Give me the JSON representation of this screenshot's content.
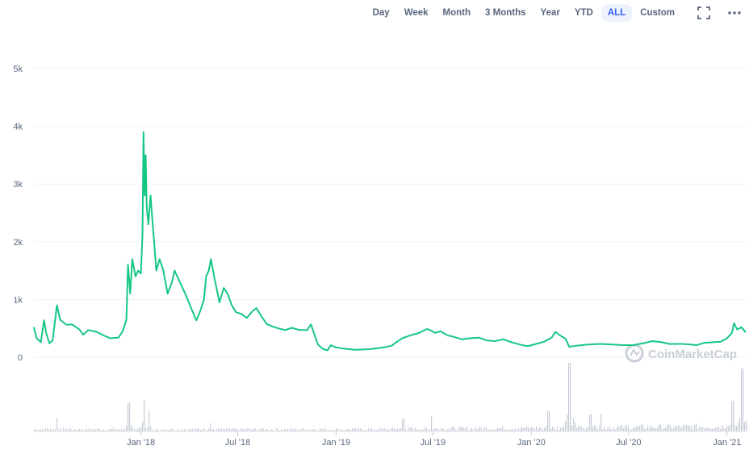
{
  "toolbar": {
    "ranges": [
      "Day",
      "Week",
      "Month",
      "3 Months",
      "Year",
      "YTD",
      "ALL",
      "Custom"
    ],
    "active_index": 6,
    "fullscreen_icon": "fullscreen-icon",
    "more_icon": "more-icon"
  },
  "watermark": {
    "text": "CoinMarketCap",
    "icon": "coinmarketcap-logo-icon"
  },
  "colors": {
    "price_line": "#16c784",
    "volume": "#c7ccd6",
    "grid": "#eff2f5",
    "accent": "#3861fb"
  },
  "chart_data": {
    "type": "line",
    "title": "",
    "xlabel": "",
    "ylabel": "",
    "ylim": [
      0,
      5000
    ],
    "y_ticks": [
      0,
      1000,
      2000,
      3000,
      4000,
      5000
    ],
    "y_tick_labels": [
      "0",
      "1k",
      "2k",
      "3k",
      "4k",
      "5k"
    ],
    "xlim": [
      "2017-06-15",
      "2021-02-05"
    ],
    "x_ticks": [
      "2018-01-01",
      "2018-07-01",
      "2019-01-01",
      "2019-07-01",
      "2020-01-01",
      "2020-07-01",
      "2021-01-01"
    ],
    "x_tick_labels": [
      "Jan '18",
      "Jul '18",
      "Jan '19",
      "Jul '19",
      "Jan '20",
      "Jul '20",
      "Jan '21"
    ],
    "grid": true,
    "series": [
      {
        "kind": "price",
        "points": [
          [
            "2017-06-15",
            520
          ],
          [
            "2017-06-20",
            330
          ],
          [
            "2017-06-28",
            260
          ],
          [
            "2017-07-04",
            640
          ],
          [
            "2017-07-08",
            420
          ],
          [
            "2017-07-14",
            240
          ],
          [
            "2017-07-20",
            290
          ],
          [
            "2017-07-28",
            900
          ],
          [
            "2017-08-03",
            650
          ],
          [
            "2017-08-15",
            560
          ],
          [
            "2017-08-25",
            570
          ],
          [
            "2017-09-08",
            480
          ],
          [
            "2017-09-15",
            390
          ],
          [
            "2017-09-25",
            470
          ],
          [
            "2017-10-10",
            440
          ],
          [
            "2017-10-25",
            370
          ],
          [
            "2017-11-05",
            330
          ],
          [
            "2017-11-20",
            340
          ],
          [
            "2017-11-28",
            450
          ],
          [
            "2017-12-05",
            650
          ],
          [
            "2017-12-08",
            1600
          ],
          [
            "2017-12-12",
            1100
          ],
          [
            "2017-12-16",
            1700
          ],
          [
            "2017-12-22",
            1400
          ],
          [
            "2017-12-27",
            1500
          ],
          [
            "2018-01-01",
            1450
          ],
          [
            "2018-01-04",
            2100
          ],
          [
            "2018-01-06",
            3900
          ],
          [
            "2018-01-08",
            2800
          ],
          [
            "2018-01-10",
            3500
          ],
          [
            "2018-01-12",
            2600
          ],
          [
            "2018-01-15",
            2300
          ],
          [
            "2018-01-19",
            2800
          ],
          [
            "2018-01-24",
            2200
          ],
          [
            "2018-01-30",
            1500
          ],
          [
            "2018-02-05",
            1700
          ],
          [
            "2018-02-12",
            1500
          ],
          [
            "2018-02-20",
            1100
          ],
          [
            "2018-02-28",
            1300
          ],
          [
            "2018-03-05",
            1500
          ],
          [
            "2018-03-15",
            1300
          ],
          [
            "2018-03-25",
            1100
          ],
          [
            "2018-04-05",
            850
          ],
          [
            "2018-04-15",
            640
          ],
          [
            "2018-04-22",
            800
          ],
          [
            "2018-04-29",
            1000
          ],
          [
            "2018-05-03",
            1400
          ],
          [
            "2018-05-08",
            1500
          ],
          [
            "2018-05-12",
            1700
          ],
          [
            "2018-05-18",
            1400
          ],
          [
            "2018-05-28",
            950
          ],
          [
            "2018-06-05",
            1200
          ],
          [
            "2018-06-12",
            1100
          ],
          [
            "2018-06-20",
            900
          ],
          [
            "2018-06-28",
            780
          ],
          [
            "2018-07-08",
            750
          ],
          [
            "2018-07-18",
            680
          ],
          [
            "2018-07-28",
            790
          ],
          [
            "2018-08-05",
            850
          ],
          [
            "2018-08-15",
            700
          ],
          [
            "2018-08-25",
            570
          ],
          [
            "2018-09-05",
            530
          ],
          [
            "2018-09-15",
            500
          ],
          [
            "2018-09-28",
            470
          ],
          [
            "2018-10-10",
            510
          ],
          [
            "2018-10-25",
            470
          ],
          [
            "2018-11-08",
            470
          ],
          [
            "2018-11-15",
            570
          ],
          [
            "2018-11-20",
            430
          ],
          [
            "2018-11-28",
            220
          ],
          [
            "2018-12-08",
            140
          ],
          [
            "2018-12-16",
            120
          ],
          [
            "2018-12-22",
            210
          ],
          [
            "2019-01-01",
            170
          ],
          [
            "2019-01-15",
            150
          ],
          [
            "2019-02-05",
            130
          ],
          [
            "2019-03-05",
            140
          ],
          [
            "2019-04-01",
            170
          ],
          [
            "2019-04-15",
            200
          ],
          [
            "2019-04-25",
            270
          ],
          [
            "2019-05-05",
            330
          ],
          [
            "2019-05-20",
            380
          ],
          [
            "2019-06-05",
            420
          ],
          [
            "2019-06-20",
            490
          ],
          [
            "2019-06-28",
            460
          ],
          [
            "2019-07-05",
            420
          ],
          [
            "2019-07-15",
            450
          ],
          [
            "2019-07-28",
            380
          ],
          [
            "2019-08-10",
            350
          ],
          [
            "2019-08-25",
            310
          ],
          [
            "2019-09-10",
            330
          ],
          [
            "2019-09-25",
            340
          ],
          [
            "2019-10-10",
            290
          ],
          [
            "2019-10-25",
            280
          ],
          [
            "2019-11-10",
            310
          ],
          [
            "2019-11-25",
            260
          ],
          [
            "2019-12-10",
            220
          ],
          [
            "2019-12-25",
            190
          ],
          [
            "2020-01-10",
            230
          ],
          [
            "2020-01-25",
            270
          ],
          [
            "2020-02-08",
            340
          ],
          [
            "2020-02-15",
            440
          ],
          [
            "2020-02-22",
            390
          ],
          [
            "2020-03-05",
            320
          ],
          [
            "2020-03-12",
            180
          ],
          [
            "2020-03-25",
            200
          ],
          [
            "2020-04-15",
            220
          ],
          [
            "2020-05-10",
            230
          ],
          [
            "2020-06-01",
            220
          ],
          [
            "2020-06-20",
            210
          ],
          [
            "2020-07-10",
            210
          ],
          [
            "2020-08-01",
            250
          ],
          [
            "2020-08-15",
            280
          ],
          [
            "2020-09-01",
            260
          ],
          [
            "2020-09-15",
            230
          ],
          [
            "2020-10-10",
            230
          ],
          [
            "2020-10-25",
            220
          ],
          [
            "2020-11-05",
            210
          ],
          [
            "2020-11-20",
            250
          ],
          [
            "2020-12-05",
            260
          ],
          [
            "2020-12-20",
            270
          ],
          [
            "2021-01-01",
            330
          ],
          [
            "2021-01-10",
            420
          ],
          [
            "2021-01-14",
            590
          ],
          [
            "2021-01-20",
            480
          ],
          [
            "2021-01-28",
            520
          ],
          [
            "2021-02-05",
            430
          ]
        ]
      },
      {
        "kind": "volume",
        "volume_spikes": [
          [
            "2017-07-28",
            0.2
          ],
          [
            "2017-12-08",
            0.42
          ],
          [
            "2018-01-06",
            0.46
          ],
          [
            "2018-01-16",
            0.3
          ],
          [
            "2018-05-10",
            0.12
          ],
          [
            "2019-05-05",
            0.18
          ],
          [
            "2019-06-28",
            0.22
          ],
          [
            "2020-02-01",
            0.3
          ],
          [
            "2020-03-12",
            1.0
          ],
          [
            "2020-04-20",
            0.25
          ],
          [
            "2020-05-10",
            0.26
          ],
          [
            "2021-01-10",
            0.45
          ],
          [
            "2021-01-28",
            0.92
          ]
        ]
      }
    ]
  }
}
